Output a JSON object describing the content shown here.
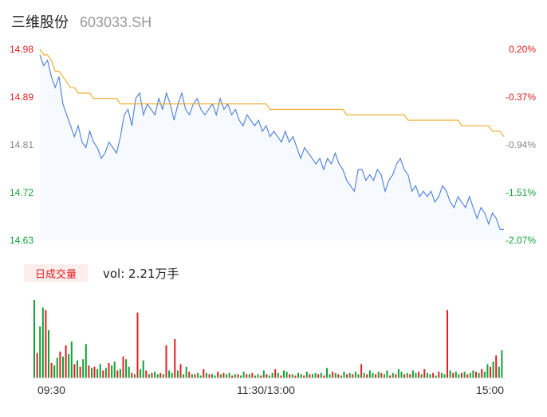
{
  "header": {
    "name": "三维股份",
    "code": "603033.SH"
  },
  "chart_data": {
    "type": "line",
    "price_axis": {
      "ticks": [
        "14.98",
        "14.89",
        "14.81",
        "14.72",
        "14.63"
      ],
      "pct_ticks": [
        "0.20%",
        "-0.37%",
        "-0.94%",
        "-1.51%",
        "-2.07%"
      ],
      "ylim": [
        14.63,
        14.98
      ]
    },
    "series": [
      {
        "values": [
          14.97,
          14.95,
          14.96,
          14.93,
          14.91,
          14.93,
          14.88,
          14.86,
          14.84,
          14.82,
          14.84,
          14.81,
          14.8,
          14.83,
          14.81,
          14.8,
          14.78,
          14.79,
          14.81,
          14.8,
          14.79,
          14.82,
          14.86,
          14.87,
          14.84,
          14.89,
          14.9,
          14.86,
          14.88,
          14.87,
          14.86,
          14.89,
          14.87,
          14.9,
          14.88,
          14.85,
          14.88,
          14.9,
          14.87,
          14.86,
          14.88,
          14.89,
          14.87,
          14.86,
          14.87,
          14.88,
          14.86,
          14.89,
          14.87,
          14.88,
          14.86,
          14.87,
          14.85,
          14.84,
          14.86,
          14.85,
          14.84,
          14.85,
          14.83,
          14.84,
          14.82,
          14.83,
          14.82,
          14.81,
          14.83,
          14.81,
          14.82,
          14.8,
          14.78,
          14.8,
          14.79,
          14.78,
          14.77,
          14.78,
          14.76,
          14.78,
          14.77,
          14.79,
          14.77,
          14.76,
          14.74,
          14.73,
          14.72,
          14.76,
          14.76,
          14.74,
          14.75,
          14.74,
          14.76,
          14.75,
          14.72,
          14.74,
          14.75,
          14.77,
          14.78,
          14.76,
          14.75,
          14.72,
          14.73,
          14.71,
          14.72,
          14.71,
          14.72,
          14.7,
          14.71,
          14.73,
          14.72,
          14.7,
          14.69,
          14.71,
          14.7,
          14.69,
          14.71,
          14.69,
          14.67,
          14.69,
          14.68,
          14.66,
          14.68,
          14.67,
          14.65,
          14.65
        ]
      },
      {
        "values": [
          14.98,
          14.97,
          14.97,
          14.96,
          14.94,
          14.94,
          14.93,
          14.92,
          14.91,
          14.91,
          14.9,
          14.9,
          14.9,
          14.9,
          14.89,
          14.89,
          14.89,
          14.89,
          14.89,
          14.89,
          14.89,
          14.88,
          14.88,
          14.88,
          14.88,
          14.88,
          14.88,
          14.88,
          14.88,
          14.88,
          14.88,
          14.88,
          14.88,
          14.88,
          14.88,
          14.88,
          14.88,
          14.88,
          14.88,
          14.88,
          14.88,
          14.88,
          14.88,
          14.88,
          14.88,
          14.88,
          14.88,
          14.88,
          14.88,
          14.88,
          14.88,
          14.88,
          14.88,
          14.88,
          14.88,
          14.88,
          14.88,
          14.88,
          14.88,
          14.88,
          14.87,
          14.87,
          14.87,
          14.87,
          14.87,
          14.87,
          14.87,
          14.87,
          14.87,
          14.87,
          14.87,
          14.87,
          14.87,
          14.87,
          14.87,
          14.87,
          14.87,
          14.87,
          14.87,
          14.87,
          14.86,
          14.86,
          14.86,
          14.86,
          14.86,
          14.86,
          14.86,
          14.86,
          14.86,
          14.86,
          14.86,
          14.86,
          14.86,
          14.86,
          14.86,
          14.86,
          14.85,
          14.85,
          14.85,
          14.85,
          14.85,
          14.85,
          14.85,
          14.85,
          14.85,
          14.85,
          14.85,
          14.85,
          14.85,
          14.85,
          14.84,
          14.84,
          14.84,
          14.84,
          14.84,
          14.84,
          14.84,
          14.84,
          14.83,
          14.83,
          14.83,
          14.82
        ]
      }
    ],
    "volume": {
      "label": "日成交量",
      "readout": "vol: 2.21万手",
      "values": [
        62,
        20,
        41,
        56,
        54,
        38,
        12,
        10,
        16,
        21,
        17,
        26,
        19,
        29,
        11,
        14,
        9,
        15,
        27,
        10,
        8,
        9,
        7,
        11,
        6,
        8,
        12,
        10,
        13,
        6,
        7,
        17,
        15,
        9,
        4,
        3,
        52,
        7,
        14,
        6,
        3,
        4,
        5,
        3,
        4,
        3,
        26,
        6,
        4,
        31,
        6,
        11,
        3,
        9,
        5,
        3,
        3,
        4,
        2,
        7,
        4,
        3,
        3,
        2,
        5,
        3,
        4,
        3,
        4,
        2,
        3,
        3,
        2,
        5,
        3,
        3,
        4,
        2,
        3,
        2,
        6,
        3,
        2,
        4,
        7,
        4,
        2,
        6,
        5,
        3,
        3,
        2,
        4,
        3,
        2,
        5,
        3,
        3,
        4,
        3,
        4,
        2,
        8,
        3,
        5,
        4,
        3,
        2,
        5,
        3,
        4,
        3,
        5,
        3,
        11,
        4,
        3,
        6,
        4,
        3,
        5,
        4,
        3,
        6,
        2,
        4,
        3,
        7,
        5,
        3,
        4,
        3,
        6,
        4,
        5,
        3,
        7,
        4,
        3,
        4,
        2,
        5,
        4,
        3,
        54,
        6,
        4,
        5,
        3,
        4,
        5,
        3,
        4,
        6,
        5,
        4,
        7,
        5,
        11,
        9,
        13,
        18,
        9,
        22
      ]
    },
    "time_labels": [
      "09:30",
      "11:30/13:00",
      "15:00"
    ]
  },
  "colors": {
    "price_line": "#4a7fd8",
    "avg_line": "#f0a820",
    "area": "#f6f9fe",
    "up": "#e02020",
    "down": "#12a035",
    "pos": "#e02020",
    "neg": "#12a035",
    "neutral": "#888888"
  }
}
